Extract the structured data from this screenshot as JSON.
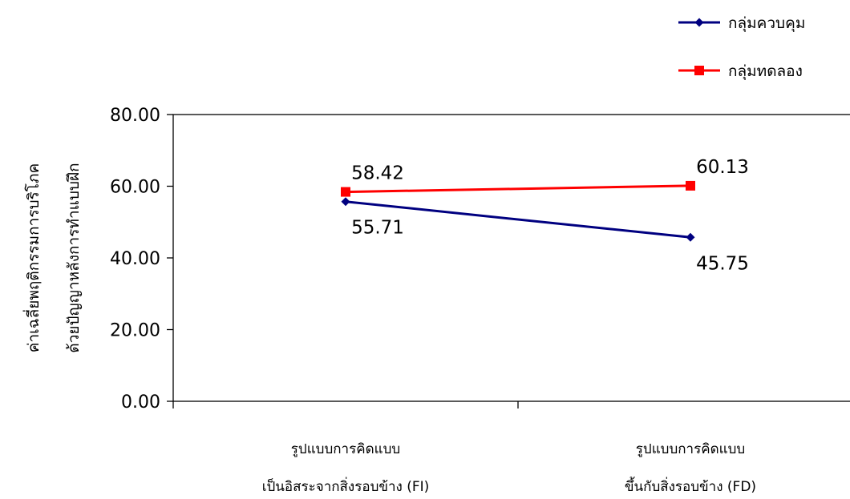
{
  "chart_data": {
    "type": "line",
    "categories": [
      [
        "รูปแบบการคิดแบบ",
        "เป็นอิสระจากสิ่งรอบข้าง (FI)"
      ],
      [
        "รูปแบบการคิดแบบ",
        "ขึ้นกับสิ่งรอบข้าง (FD)"
      ]
    ],
    "series": [
      {
        "name": "กลุ่มควบคุม",
        "values": [
          55.71,
          45.75
        ],
        "labels": [
          "55.71",
          "45.75"
        ],
        "color": "#000080",
        "marker": "diamond",
        "label_position": "below"
      },
      {
        "name": "กลุ่มทดลอง",
        "values": [
          58.42,
          60.13
        ],
        "labels": [
          "58.42",
          "60.13"
        ],
        "color": "#ff0000",
        "marker": "square",
        "label_position": "above"
      }
    ],
    "ylabel": [
      "ค่าเฉลี่ยพฤติกรรมการบริโภค",
      "ด้วยปัญญาหลังการทำแบบฝึก"
    ],
    "yticks": [
      "0.00",
      "20.00",
      "40.00",
      "60.00",
      "80.00"
    ],
    "ylim": [
      0,
      80
    ],
    "grid": false,
    "legend_position": "top-right"
  }
}
